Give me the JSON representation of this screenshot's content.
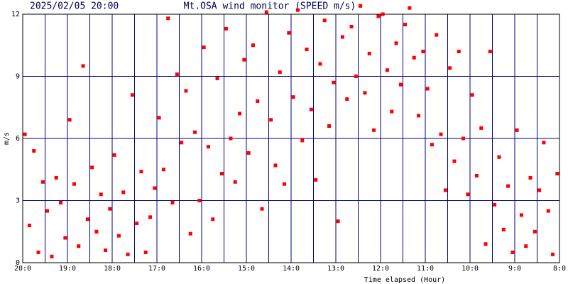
{
  "chart_data": {
    "type": "scatter",
    "title": "Mt.OSA wind monitor (SPEED m/s)",
    "subtitle": "2025/02/05 20:00",
    "x_label": "Time elapsed (Hour)",
    "y_label": "m/s",
    "color": "#ff0000",
    "grid": true,
    "xlim": [
      20,
      8
    ],
    "ylim": [
      0,
      12
    ],
    "xticks": [
      {
        "value": 20,
        "label": "20:0"
      },
      {
        "value": 19,
        "label": "19:0"
      },
      {
        "value": 18,
        "label": "18:0"
      },
      {
        "value": 17,
        "label": "17:0"
      },
      {
        "value": 16,
        "label": "16:0"
      },
      {
        "value": 15,
        "label": "15:0"
      },
      {
        "value": 14,
        "label": "14:0"
      },
      {
        "value": 13,
        "label": "13:0"
      },
      {
        "value": 12,
        "label": "12:0"
      },
      {
        "value": 11,
        "label": "11:0"
      },
      {
        "value": 10,
        "label": "10:0"
      },
      {
        "value": 9,
        "label": "9:0"
      },
      {
        "value": 8,
        "label": "8:0"
      }
    ],
    "yticks": [
      0,
      3,
      6,
      9,
      12
    ],
    "x": [
      19.95,
      19.85,
      19.75,
      19.65,
      19.55,
      19.45,
      19.35,
      19.25,
      19.15,
      19.05,
      18.95,
      18.85,
      18.75,
      18.65,
      18.55,
      18.45,
      18.35,
      18.25,
      18.15,
      18.05,
      17.95,
      17.85,
      17.75,
      17.65,
      17.55,
      17.45,
      17.35,
      17.25,
      17.15,
      17.05,
      16.95,
      16.85,
      16.75,
      16.65,
      16.55,
      16.45,
      16.35,
      16.25,
      16.15,
      16.05,
      15.95,
      15.85,
      15.75,
      15.65,
      15.55,
      15.45,
      15.35,
      15.25,
      15.15,
      15.05,
      14.95,
      14.85,
      14.75,
      14.65,
      14.55,
      14.45,
      14.35,
      14.25,
      14.15,
      14.05,
      13.95,
      13.85,
      13.75,
      13.65,
      13.55,
      13.45,
      13.35,
      13.25,
      13.15,
      13.05,
      12.95,
      12.85,
      12.75,
      12.65,
      12.55,
      12.45,
      12.35,
      12.25,
      12.15,
      12.05,
      11.95,
      11.85,
      11.75,
      11.65,
      11.55,
      11.45,
      11.35,
      11.25,
      11.15,
      11.05,
      10.95,
      10.85,
      10.75,
      10.65,
      10.55,
      10.45,
      10.35,
      10.25,
      10.15,
      10.05,
      9.95,
      9.85,
      9.75,
      9.65,
      9.55,
      9.45,
      9.35,
      9.25,
      9.15,
      9.05,
      8.95,
      8.85,
      8.75,
      8.65,
      8.55,
      8.45,
      8.35,
      8.25,
      8.15,
      8.05
    ],
    "values": [
      6.2,
      1.8,
      5.4,
      0.5,
      3.9,
      2.5,
      0.3,
      4.1,
      2.9,
      1.2,
      6.9,
      3.8,
      0.8,
      9.5,
      2.1,
      4.6,
      1.5,
      3.3,
      0.6,
      2.6,
      5.2,
      1.3,
      3.4,
      0.4,
      8.1,
      1.9,
      4.4,
      0.5,
      2.2,
      3.6,
      7.0,
      4.5,
      11.8,
      2.9,
      9.1,
      5.8,
      8.3,
      1.4,
      6.3,
      3.0,
      10.4,
      5.6,
      2.1,
      8.9,
      4.3,
      11.3,
      6.0,
      3.9,
      7.2,
      9.8,
      5.3,
      10.5,
      7.8,
      2.6,
      12.1,
      6.9,
      4.7,
      9.2,
      3.8,
      11.1,
      8.0,
      12.2,
      5.9,
      10.3,
      7.4,
      4.0,
      9.6,
      11.7,
      6.6,
      8.7,
      2.0,
      10.9,
      7.9,
      11.4,
      9.0,
      12.4,
      8.2,
      10.1,
      6.4,
      11.9,
      12.0,
      9.3,
      7.3,
      10.6,
      8.6,
      11.5,
      12.3,
      9.9,
      7.1,
      10.2,
      8.4,
      5.7,
      11.0,
      6.2,
      3.5,
      9.4,
      4.9,
      10.2,
      6.0,
      3.3,
      8.1,
      4.2,
      6.5,
      0.9,
      10.2,
      2.8,
      5.1,
      1.6,
      3.7,
      0.5,
      6.4,
      2.3,
      0.8,
      4.1,
      1.5,
      3.5,
      5.8,
      2.5,
      0.4,
      4.3
    ]
  }
}
